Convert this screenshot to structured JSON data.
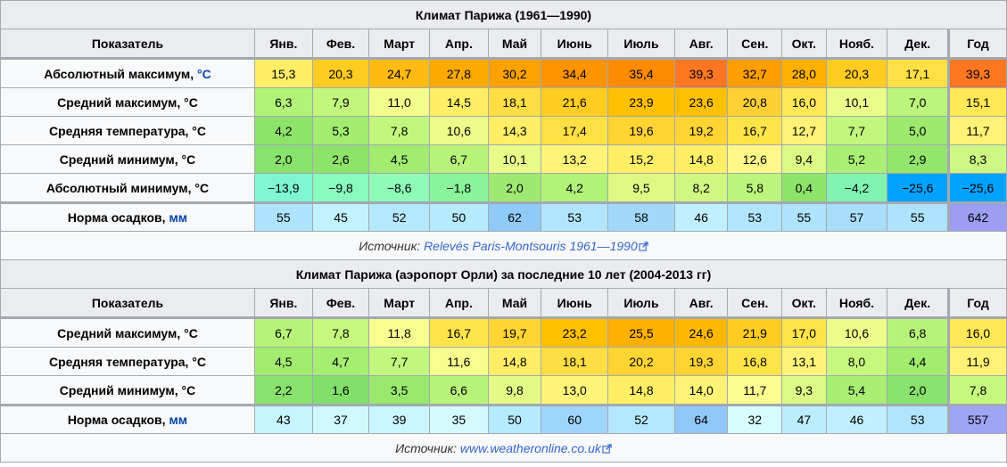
{
  "colors": {
    "header_bg": "#eaecf0",
    "label_bg": "#f8f9fa",
    "border": "#a2a9b1",
    "link": "#0645ad"
  },
  "months": [
    "Янв.",
    "Фев.",
    "Март",
    "Апр.",
    "Май",
    "Июнь",
    "Июль",
    "Авг.",
    "Сен.",
    "Окт.",
    "Нояб.",
    "Дек."
  ],
  "year_label": "Год",
  "indicator_label": "Показатель",
  "table1": {
    "title": "Климат Парижа (1961—1990)",
    "rows": [
      {
        "label": "Абсолютный максимум, ",
        "unit": "°C",
        "values": [
          "15,3",
          "20,3",
          "24,7",
          "27,8",
          "30,2",
          "34,4",
          "35,4",
          "39,3",
          "32,7",
          "28,0",
          "20,3",
          "17,1"
        ],
        "year": "39,3",
        "colors": [
          "#ffee66",
          "#ffcc22",
          "#ffbb11",
          "#ffaa00",
          "#ffa200",
          "#ff9400",
          "#ff8c00",
          "#ff7722",
          "#ff9e00",
          "#ffb000",
          "#ffcc22",
          "#ffe044"
        ],
        "year_color": "#ff7722"
      },
      {
        "label": "Средний максимум, °C",
        "unit": "",
        "values": [
          "6,3",
          "7,9",
          "11,0",
          "14,5",
          "18,1",
          "21,6",
          "23,9",
          "23,6",
          "20,8",
          "16,0",
          "10,1",
          "7,0"
        ],
        "year": "15,1",
        "colors": [
          "#b2f277",
          "#c2f77d",
          "#f2fd8c",
          "#ffee66",
          "#ffdd44",
          "#ffcc22",
          "#ffc000",
          "#ffc000",
          "#ffd033",
          "#ffe855",
          "#eafc8a",
          "#bcf57c"
        ],
        "year_color": "#ffe855"
      },
      {
        "label": "Средняя температура, °C",
        "unit": "",
        "values": [
          "4,2",
          "5,3",
          "7,8",
          "10,6",
          "14,3",
          "17,4",
          "19,6",
          "19,2",
          "16,7",
          "12,7",
          "7,7",
          "5,0"
        ],
        "year": "11,7",
        "colors": [
          "#8ee36a",
          "#a2ec70",
          "#c2f77d",
          "#ecfc8a",
          "#ffee66",
          "#ffe044",
          "#ffd433",
          "#ffd433",
          "#ffe448",
          "#fff277",
          "#c2f77d",
          "#9ce96e"
        ],
        "year_color": "#fff277"
      },
      {
        "label": "Средний минимум, °C",
        "unit": "",
        "values": [
          "2,0",
          "2,6",
          "4,5",
          "6,7",
          "10,1",
          "13,2",
          "15,2",
          "14,8",
          "12,6",
          "9,4",
          "5,2",
          "2,9"
        ],
        "year": "8,3",
        "colors": [
          "#88e26c",
          "#8ee36a",
          "#a2ec70",
          "#b8f379",
          "#e8fb88",
          "#fff478",
          "#ffee66",
          "#ffee66",
          "#fff888",
          "#dcf985",
          "#a8ef73",
          "#92e66c"
        ],
        "year_color": "#ccf883"
      },
      {
        "label": "Абсолютный минимум, °C",
        "unit": "",
        "values": [
          "−13,9",
          "−9,8",
          "−8,6",
          "−1,8",
          "2,0",
          "4,2",
          "9,5",
          "8,2",
          "5,8",
          "0,4",
          "−4,2",
          "−25,6"
        ],
        "year": "−25,6",
        "colors": [
          "#7ef7d1",
          "#8afbbf",
          "#8efbb9",
          "#8af49a",
          "#9ee971",
          "#b2f277",
          "#ddf984",
          "#cff782",
          "#bcf57c",
          "#8ee36a",
          "#80f4b0",
          "#00a2ff"
        ],
        "year_color": "#00a2ff"
      }
    ],
    "precip": {
      "label": "Норма осадков, ",
      "unit": "мм",
      "values": [
        "55",
        "45",
        "52",
        "50",
        "62",
        "53",
        "58",
        "46",
        "53",
        "55",
        "57",
        "55"
      ],
      "year": "642",
      "colors": [
        "#aee3fd",
        "#c2f2ff",
        "#b4e8fd",
        "#b6eafd",
        "#90caf9",
        "#b0e5fd",
        "#a2d9fb",
        "#c0f0ff",
        "#b0e5fd",
        "#aee3fd",
        "#a8defc",
        "#aee3fd"
      ],
      "year_color": "#9b9ef2"
    },
    "source_prefix": "Источник: ",
    "source_link": "Relevés Paris-Montsouris 1961—1990"
  },
  "table2": {
    "title": "Климат Парижа (аэропорт Орли) за последние 10 лет (2004-2013 гг)",
    "rows": [
      {
        "label": "Средний максимум, °C",
        "unit": "",
        "values": [
          "6,7",
          "7,8",
          "11,8",
          "16,7",
          "19,7",
          "23,2",
          "25,5",
          "24,6",
          "21,9",
          "17,0",
          "10,6",
          "6,8"
        ],
        "year": "16,0",
        "colors": [
          "#b8f379",
          "#c6f87e",
          "#f6fe8e",
          "#ffe44c",
          "#ffd433",
          "#ffc000",
          "#ffb000",
          "#ffb800",
          "#ffcc22",
          "#ffe448",
          "#eefc8a",
          "#b8f379"
        ],
        "year_color": "#ffe855"
      },
      {
        "label": "Средняя температура, °C",
        "unit": "",
        "values": [
          "4,5",
          "4,7",
          "7,7",
          "11,6",
          "14,8",
          "18,1",
          "20,2",
          "19,3",
          "16,8",
          "13,1",
          "8,0",
          "4,4"
        ],
        "year": "11,9",
        "colors": [
          "#a2ec70",
          "#a6ee72",
          "#c2f77d",
          "#f6fe8e",
          "#ffee66",
          "#ffdd44",
          "#ffd433",
          "#ffd433",
          "#ffe448",
          "#fff478",
          "#c6f87e",
          "#a2ec70"
        ],
        "year_color": "#fff277"
      },
      {
        "label": "Средний минимум, °C",
        "unit": "",
        "values": [
          "2,2",
          "1,6",
          "3,5",
          "6,6",
          "9,8",
          "13,0",
          "14,8",
          "14,0",
          "11,7",
          "9,3",
          "5,4",
          "2,0"
        ],
        "year": "7,8",
        "colors": [
          "#88e26c",
          "#82e06a",
          "#98e86e",
          "#b8f379",
          "#e4fa87",
          "#fff478",
          "#ffee66",
          "#fff277",
          "#fcfd90",
          "#dcf985",
          "#a8ef73",
          "#88e26c"
        ],
        "year_color": "#c6f87e"
      }
    ],
    "precip": {
      "label": "Норма осадков, ",
      "unit": "мм",
      "values": [
        "43",
        "37",
        "39",
        "35",
        "50",
        "60",
        "52",
        "64",
        "32",
        "47",
        "46",
        "53"
      ],
      "year": "557",
      "colors": [
        "#c6f4ff",
        "#d0f8ff",
        "#ccf6ff",
        "#d4faff",
        "#b6eafd",
        "#9ed5fb",
        "#b4e8fd",
        "#90c8f8",
        "#d8fcff",
        "#bcedfe",
        "#c0f0ff",
        "#b0e5fd"
      ],
      "year_color": "#a0a4f4"
    },
    "source_prefix": "Источник: ",
    "source_link": "www.weatheronline.co.uk"
  }
}
